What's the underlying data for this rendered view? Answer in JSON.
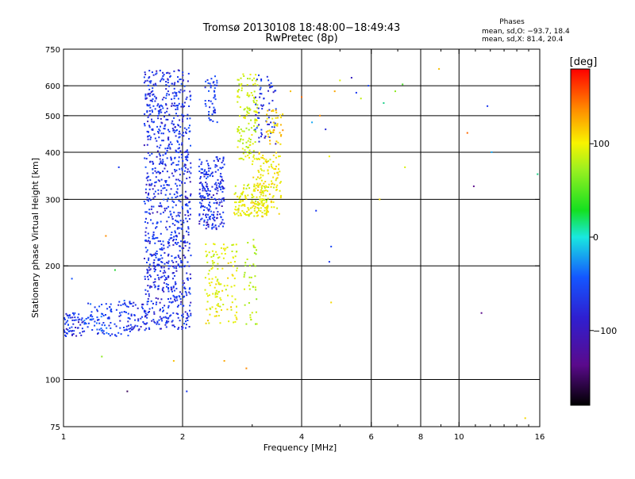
{
  "chart_data": {
    "type": "scatter",
    "title": "Tromsø 20130108 18:48:00−18:49:43",
    "subtitle": "RwPretec (8p)",
    "xlabel": "Frequency [MHz]",
    "ylabel": "Stationary phase Virtual Height [km]",
    "x_scale": "log",
    "y_scale": "log",
    "xlim": [
      1,
      16
    ],
    "ylim": [
      75,
      750
    ],
    "x_ticks": [
      1,
      2,
      4,
      6,
      8,
      10,
      16
    ],
    "x_tick_labels": [
      "1",
      "2",
      "4",
      "6",
      "8",
      "10",
      "16"
    ],
    "y_ticks": [
      75,
      100,
      200,
      300,
      400,
      500,
      600,
      750
    ],
    "y_tick_labels": [
      "75",
      "100",
      "200",
      "300",
      "400",
      "500",
      "600",
      "750"
    ],
    "grid": true,
    "stats": {
      "header": "Phases",
      "line_o": "mean, sd,O: −93.7, 18.4",
      "line_x": "mean, sd,X:  81.4, 20.4"
    },
    "colorbar": {
      "label": "[deg]",
      "min": -180,
      "max": 180,
      "ticks": [
        100,
        0,
        -100
      ],
      "tick_labels": [
        "100",
        "0",
        "−100"
      ]
    },
    "clusters": [
      {
        "fmin": 1.0,
        "fmax": 1.12,
        "hmin": 130,
        "hmax": 150,
        "phase": -112,
        "n": 60
      },
      {
        "fmin": 1.12,
        "fmax": 1.3,
        "hmin": 132,
        "hmax": 160,
        "phase": -98,
        "n": 60
      },
      {
        "fmin": 1.3,
        "fmax": 1.5,
        "hmin": 130,
        "hmax": 162,
        "phase": -108,
        "n": 70
      },
      {
        "fmin": 1.5,
        "fmax": 1.62,
        "hmin": 135,
        "hmax": 160,
        "phase": -112,
        "n": 30
      },
      {
        "fmin": 1.6,
        "fmax": 2.1,
        "hmin": 135,
        "hmax": 660,
        "phase": -112,
        "n": 950
      },
      {
        "fmin": 2.2,
        "fmax": 2.55,
        "hmin": 250,
        "hmax": 390,
        "phase": -112,
        "n": 220
      },
      {
        "fmin": 2.28,
        "fmax": 2.45,
        "hmin": 480,
        "hmax": 640,
        "phase": -108,
        "n": 45
      },
      {
        "fmin": 2.28,
        "fmax": 2.75,
        "hmin": 140,
        "hmax": 230,
        "phase": 95,
        "n": 130
      },
      {
        "fmin": 2.7,
        "fmax": 3.3,
        "hmin": 270,
        "hmax": 330,
        "phase": 95,
        "n": 140
      },
      {
        "fmin": 2.75,
        "fmax": 3.1,
        "hmin": 380,
        "hmax": 650,
        "phase": 85,
        "n": 130
      },
      {
        "fmin": 3.0,
        "fmax": 3.55,
        "hmin": 270,
        "hmax": 400,
        "phase": 105,
        "n": 130
      },
      {
        "fmin": 3.05,
        "fmax": 3.45,
        "hmin": 420,
        "hmax": 640,
        "phase": -112,
        "n": 60
      },
      {
        "fmin": 3.25,
        "fmax": 3.6,
        "hmin": 420,
        "hmax": 520,
        "phase": 115,
        "n": 40
      },
      {
        "fmin": 2.85,
        "fmax": 3.1,
        "hmin": 140,
        "hmax": 240,
        "phase": 75,
        "n": 40
      }
    ],
    "points": [
      {
        "x": 1.05,
        "y": 185,
        "phase": -90
      },
      {
        "x": 1.38,
        "y": 365,
        "phase": -110
      },
      {
        "x": 1.28,
        "y": 240,
        "phase": 140
      },
      {
        "x": 1.35,
        "y": 195,
        "phase": 10
      },
      {
        "x": 1.25,
        "y": 115,
        "phase": 60
      },
      {
        "x": 1.45,
        "y": 93,
        "phase": -160
      },
      {
        "x": 1.9,
        "y": 112,
        "phase": 120
      },
      {
        "x": 2.05,
        "y": 93,
        "phase": -110
      },
      {
        "x": 2.55,
        "y": 112,
        "phase": 130
      },
      {
        "x": 2.9,
        "y": 107,
        "phase": 140
      },
      {
        "x": 3.75,
        "y": 580,
        "phase": 120
      },
      {
        "x": 4.0,
        "y": 560,
        "phase": 150
      },
      {
        "x": 4.25,
        "y": 480,
        "phase": -60
      },
      {
        "x": 4.35,
        "y": 280,
        "phase": -110
      },
      {
        "x": 4.45,
        "y": 500,
        "phase": 140
      },
      {
        "x": 4.6,
        "y": 460,
        "phase": -120
      },
      {
        "x": 4.7,
        "y": 390,
        "phase": 100
      },
      {
        "x": 4.75,
        "y": 225,
        "phase": -100
      },
      {
        "x": 4.85,
        "y": 580,
        "phase": 130
      },
      {
        "x": 4.75,
        "y": 160,
        "phase": 110
      },
      {
        "x": 4.7,
        "y": 205,
        "phase": -110
      },
      {
        "x": 5.0,
        "y": 620,
        "phase": 90
      },
      {
        "x": 5.35,
        "y": 630,
        "phase": -130
      },
      {
        "x": 5.5,
        "y": 575,
        "phase": -110
      },
      {
        "x": 5.65,
        "y": 555,
        "phase": 80
      },
      {
        "x": 5.9,
        "y": 600,
        "phase": -100
      },
      {
        "x": 6.3,
        "y": 300,
        "phase": 110
      },
      {
        "x": 6.45,
        "y": 540,
        "phase": -20
      },
      {
        "x": 6.9,
        "y": 580,
        "phase": 60
      },
      {
        "x": 7.2,
        "y": 605,
        "phase": 30
      },
      {
        "x": 7.3,
        "y": 365,
        "phase": 90
      },
      {
        "x": 8.9,
        "y": 665,
        "phase": 120
      },
      {
        "x": 10.5,
        "y": 450,
        "phase": 150
      },
      {
        "x": 10.9,
        "y": 325,
        "phase": -150
      },
      {
        "x": 11.4,
        "y": 150,
        "phase": -150
      },
      {
        "x": 11.8,
        "y": 530,
        "phase": -110
      },
      {
        "x": 12.1,
        "y": 400,
        "phase": -60
      },
      {
        "x": 14.7,
        "y": 79,
        "phase": 110
      },
      {
        "x": 15.8,
        "y": 350,
        "phase": -20
      }
    ]
  }
}
